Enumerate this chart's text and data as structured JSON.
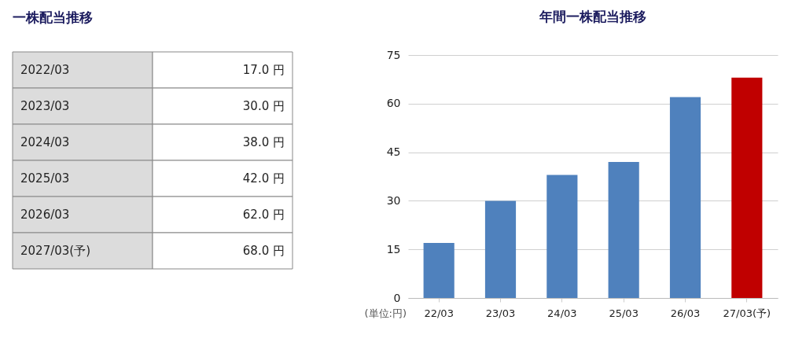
{
  "chart_data": [
    {
      "type": "other",
      "title": "一株配当推移",
      "categories": [
        "2022/03",
        "2023/03",
        "2024/03",
        "2025/03",
        "2026/03",
        "2027/03(予)"
      ],
      "value_labels": [
        "17.0 円",
        "30.0 円",
        "38.0 円",
        "42.0 円",
        "62.0 円",
        "68.0 円"
      ]
    },
    {
      "type": "bar",
      "title": "年間一株配当推移",
      "categories": [
        "22/03",
        "23/03",
        "24/03",
        "25/03",
        "26/03",
        "27/03(予)"
      ],
      "values": [
        17,
        30,
        38,
        42,
        62,
        68
      ],
      "colors": [
        "#4f81bd",
        "#4f81bd",
        "#4f81bd",
        "#4f81bd",
        "#4f81bd",
        "#c00000"
      ],
      "ylim": [
        0,
        75
      ],
      "yticks": [
        0,
        15,
        30,
        45,
        60,
        75
      ],
      "grid": "y",
      "annotations": [
        "(単位:円)"
      ]
    }
  ]
}
